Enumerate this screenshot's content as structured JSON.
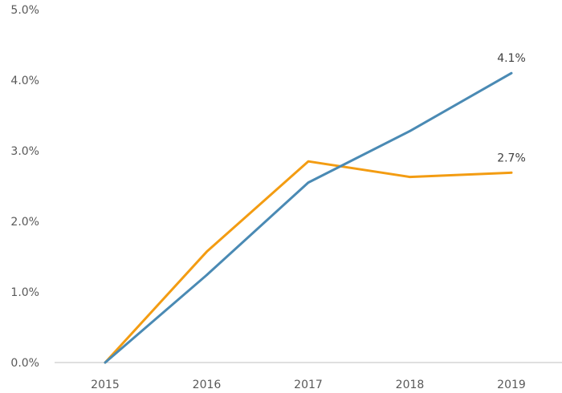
{
  "chart_data": {
    "type": "line",
    "title": "",
    "xlabel": "",
    "ylabel": "",
    "categories": [
      "2015",
      "2016",
      "2017",
      "2018",
      "2019"
    ],
    "ylim": [
      0,
      5
    ],
    "y_ticks": [
      0,
      1,
      2,
      3,
      4,
      5
    ],
    "y_tick_labels": [
      "0.0%",
      "1.0%",
      "2.0%",
      "3.0%",
      "4.0%",
      "5.0%"
    ],
    "grid": false,
    "legend": "none",
    "series": [
      {
        "color": "#4a8ab4",
        "values": [
          0.0,
          1.24,
          2.55,
          3.28,
          4.1
        ],
        "end_label": "4.1%"
      },
      {
        "color": "#f39c12",
        "values": [
          0.0,
          1.57,
          2.85,
          2.63,
          2.69
        ],
        "end_label": "2.7%"
      }
    ]
  }
}
